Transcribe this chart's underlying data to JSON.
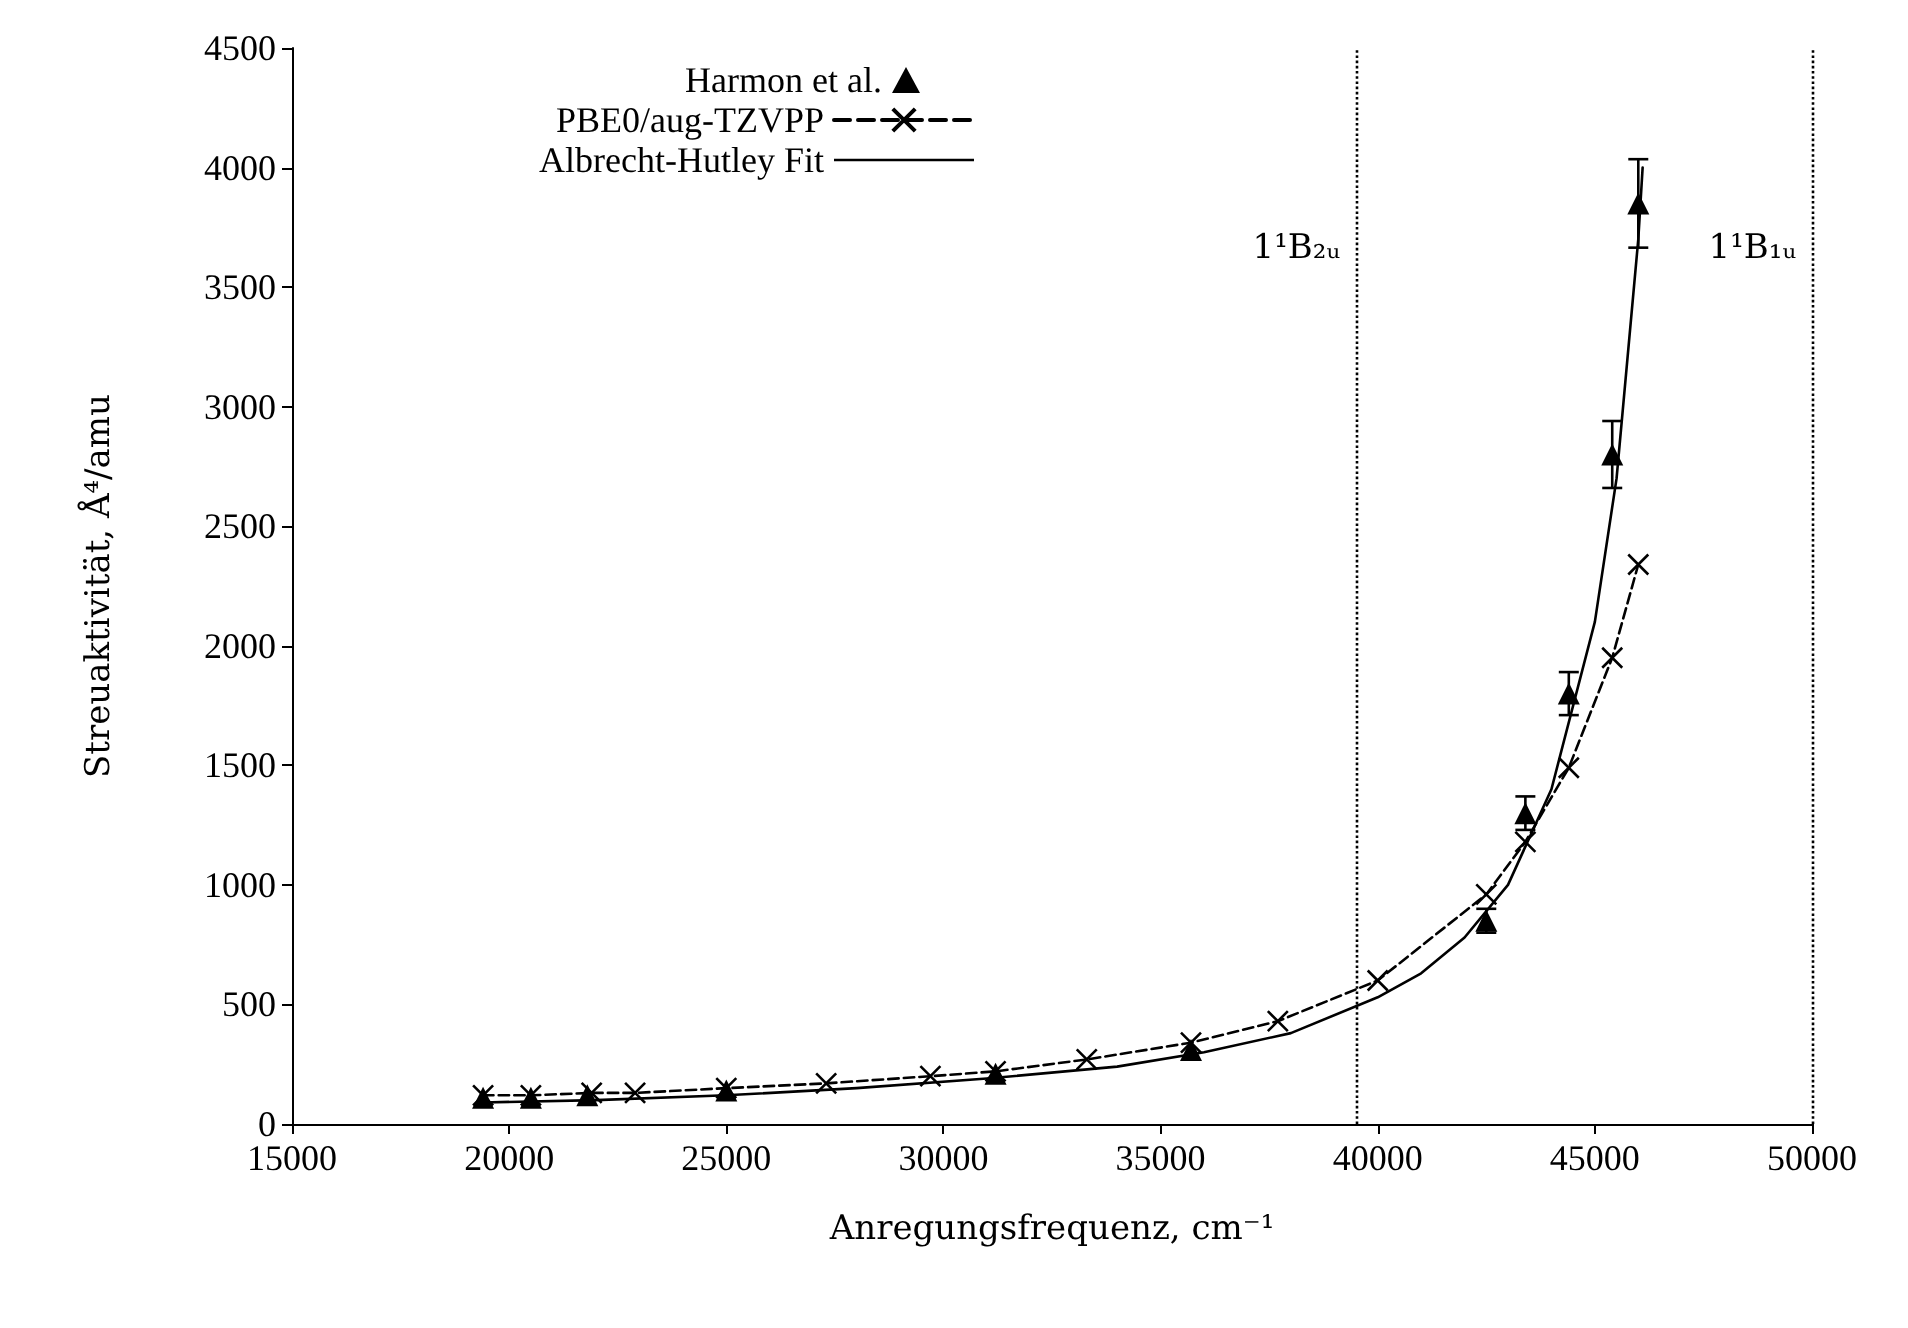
{
  "chart_data": {
    "type": "line",
    "xlabel": "Anregungsfrequenz, cm⁻¹",
    "ylabel": "Streuaktivität, Å⁴/amu",
    "xlim": [
      15000,
      50000
    ],
    "xticks": [
      15000,
      20000,
      25000,
      30000,
      35000,
      40000,
      45000,
      50000
    ],
    "ylim": [
      0,
      4500
    ],
    "yticks": [
      0,
      500,
      1000,
      1500,
      2000,
      2500,
      3000,
      3500,
      4000,
      4500
    ],
    "grid": false,
    "legend": "top left",
    "series": [
      {
        "name": "Harmon et al.",
        "type": "scatter",
        "marker": "triangle",
        "color": "#000000",
        "x": [
          19400,
          20500,
          21800,
          25000,
          31200,
          35700,
          42500,
          43400,
          44400,
          45400,
          46000
        ],
        "values": [
          110,
          110,
          120,
          140,
          210,
          310,
          850,
          1300,
          1800,
          2800,
          3850
        ],
        "errors": [
          null,
          null,
          null,
          null,
          null,
          null,
          50,
          70,
          90,
          140,
          185
        ]
      },
      {
        "name": "PBE0/aug-TZVPP",
        "type": "line",
        "marker": "cross",
        "line_style": "dashed",
        "color": "#000000",
        "x": [
          19400,
          20500,
          21900,
          22900,
          25000,
          27300,
          29700,
          31200,
          33300,
          35700,
          37700,
          40000,
          42500,
          43400,
          44400,
          45400,
          46000
        ],
        "values": [
          120,
          120,
          130,
          130,
          150,
          170,
          200,
          220,
          270,
          340,
          430,
          600,
          960,
          1180,
          1490,
          1950,
          2340
        ]
      },
      {
        "name": "Albrecht-Hutley Fit",
        "type": "line",
        "marker": "none",
        "line_style": "solid",
        "color": "#000000",
        "x": [
          19400,
          22000,
          25000,
          28000,
          31000,
          34000,
          36000,
          38000,
          40000,
          41000,
          42000,
          43000,
          44000,
          45000,
          45500,
          46000,
          46100
        ],
        "values": [
          90,
          100,
          120,
          150,
          190,
          240,
          300,
          380,
          530,
          630,
          780,
          1000,
          1400,
          2100,
          2700,
          3700,
          4000
        ]
      }
    ],
    "ref_lines": [
      {
        "axis": "x",
        "value": 39500,
        "label": "1¹B₂ᵤ",
        "line_style": "dotted",
        "color": "#000000"
      },
      {
        "axis": "x",
        "value": 50000,
        "label": "1¹B₁ᵤ",
        "line_style": "dotted",
        "color": "#000000"
      }
    ]
  }
}
